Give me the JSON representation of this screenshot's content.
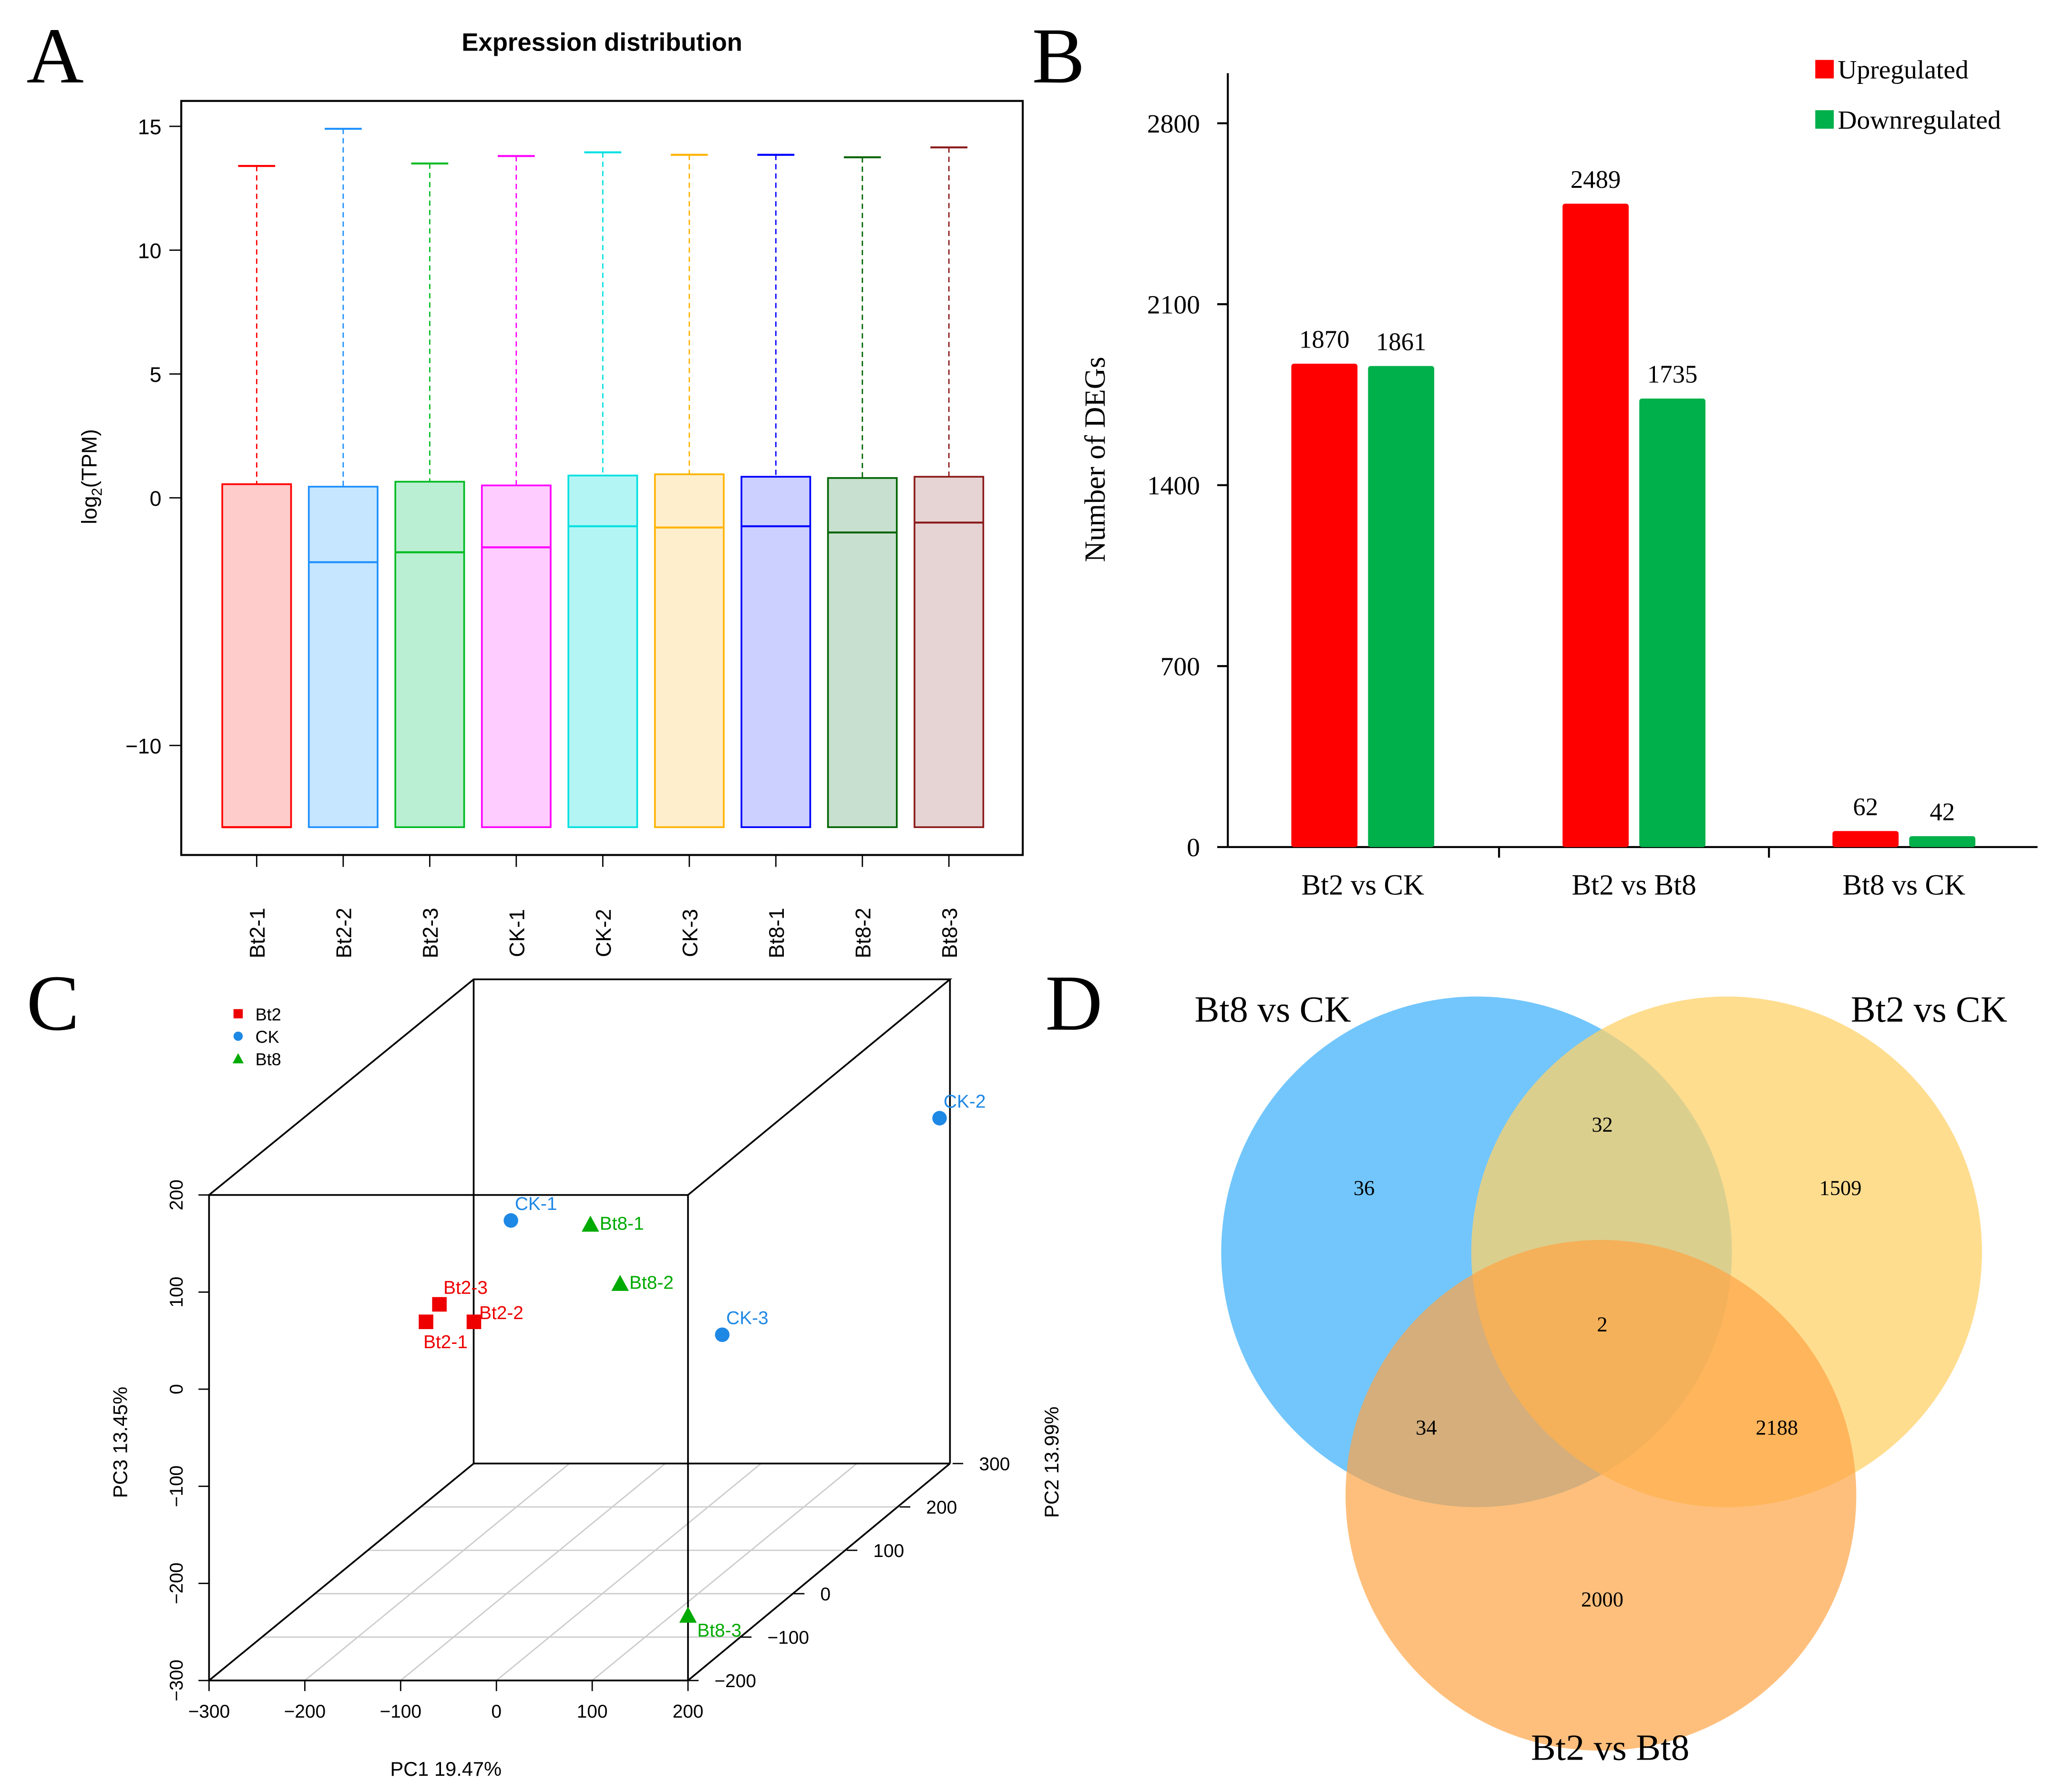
{
  "panel_labels": [
    "A",
    "B",
    "C",
    "D"
  ],
  "chart_data": [
    {
      "type": "box",
      "title": "Expression distribution",
      "ylabel_main": "log",
      "ylabel_sub": "2",
      "ylabel_rest": "(TPM)",
      "ylim": [
        -13.3,
        15.5
      ],
      "yticks": [
        "15",
        "10",
        "5",
        "0",
        "−10"
      ],
      "ytick_values": [
        15,
        10,
        5,
        0,
        -10
      ],
      "categories": [
        "Bt2-1",
        "Bt2-2",
        "Bt2-3",
        "CK-1",
        "CK-2",
        "CK-3",
        "Bt8-1",
        "Bt8-2",
        "Bt8-3"
      ],
      "box_top": [
        0.55,
        0.45,
        0.65,
        0.5,
        0.9,
        0.95,
        0.85,
        0.8,
        0.85
      ],
      "median": [
        -13.3,
        -2.6,
        -2.2,
        -2.0,
        -1.15,
        -1.2,
        -1.15,
        -1.4,
        -1.0
      ],
      "box_bottom": [
        -13.3,
        -13.3,
        -13.3,
        -13.3,
        -13.3,
        -13.3,
        -13.3,
        -13.3,
        -13.3
      ],
      "whisker_top": [
        13.4,
        14.9,
        13.5,
        13.8,
        13.95,
        13.85,
        13.85,
        13.75,
        14.15
      ],
      "colors": [
        "#FF0000",
        "#1E90FF",
        "#00BB22",
        "#FF00FF",
        "#00E0E0",
        "#FFB300",
        "#0000FF",
        "#006400",
        "#8B1A1A"
      ],
      "fills": [
        "#FFCCCC",
        "#C6E6FF",
        "#BBEFD3",
        "#FFCCFF",
        "#B3F5F5",
        "#FFEECC",
        "#CCD0FF",
        "#C8E0D0",
        "#E6D4D4"
      ]
    },
    {
      "type": "bar",
      "ylabel": "Number of DEGs",
      "ylim": [
        0,
        2800
      ],
      "yticks": [
        "0",
        "700",
        "1400",
        "2100",
        "2800"
      ],
      "ytick_values": [
        0,
        700,
        1400,
        2100,
        2800
      ],
      "categories": [
        "Bt2 vs CK",
        "Bt2 vs Bt8",
        "Bt8 vs CK"
      ],
      "series": [
        {
          "name": "Upregulated",
          "color": "#FF0000",
          "values": [
            1870,
            2489,
            62
          ]
        },
        {
          "name": "Downregulated",
          "color": "#00B04A",
          "values": [
            1861,
            1735,
            42
          ]
        }
      ],
      "legend": "top-right"
    },
    {
      "type": "scatter3d",
      "xlabel": "PC1 19.47%",
      "ylabel": "PC2 13.99%",
      "zlabel": "PC3 13.45%",
      "xticks": [
        "−300",
        "−200",
        "−100",
        "0",
        "100",
        "200"
      ],
      "xtick_values": [
        -300,
        -200,
        -100,
        0,
        100,
        200
      ],
      "yticks": [
        "−200",
        "−100",
        "0",
        "100",
        "200",
        "300"
      ],
      "ytick_values": [
        -200,
        -100,
        0,
        100,
        200,
        300
      ],
      "zticks": [
        "−300",
        "−200",
        "−100",
        "0",
        "100",
        "200"
      ],
      "ztick_values": [
        -300,
        -200,
        -100,
        0,
        100,
        200
      ],
      "legend": [
        {
          "name": "Bt2",
          "color": "#EE0000",
          "shape": "square"
        },
        {
          "name": "CK",
          "color": "#1E88E5",
          "shape": "circle"
        },
        {
          "name": "Bt8",
          "color": "#00AA00",
          "shape": "triangle"
        }
      ],
      "points": [
        {
          "label": "Bt2-1",
          "group": 0,
          "pc1": -184,
          "pc2": 0,
          "pc3": -20
        },
        {
          "label": "Bt2-2",
          "group": 0,
          "pc1": -134,
          "pc2": 0,
          "pc3": -20
        },
        {
          "label": "Bt2-3",
          "group": 0,
          "pc1": -170,
          "pc2": 0,
          "pc3": -2
        },
        {
          "label": "CK-1",
          "group": 1,
          "pc1": -123,
          "pc2": 50,
          "pc3": 62
        },
        {
          "label": "CK-2",
          "group": 1,
          "pc1": 214,
          "pc2": 250,
          "pc3": 78
        },
        {
          "label": "CK-3",
          "group": 1,
          "pc1": 70,
          "pc2": 100,
          "pc3": -78
        },
        {
          "label": "Bt8-1",
          "group": 2,
          "pc1": -40,
          "pc2": 50,
          "pc3": 58
        },
        {
          "label": "Bt8-2",
          "group": 2,
          "pc1": -9,
          "pc2": 50,
          "pc3": -3
        },
        {
          "label": "Bt8-3",
          "group": 2,
          "pc1": 200,
          "pc2": -200,
          "pc3": -233
        }
      ]
    },
    {
      "type": "venn",
      "sets": [
        {
          "name": "Bt8 vs CK",
          "color": "#4FB8FB"
        },
        {
          "name": "Bt2 vs CK",
          "color": "#FFD26A"
        },
        {
          "name": "Bt2 vs Bt8",
          "color": "#FFA445"
        }
      ],
      "regions": {
        "only_bt8ck": "36",
        "only_bt2ck": "1509",
        "only_bt2bt8": "2000",
        "bt8ck_bt2ck": "32",
        "bt8ck_bt2bt8": "34",
        "bt2ck_bt2bt8": "2188",
        "all": "2"
      }
    }
  ]
}
